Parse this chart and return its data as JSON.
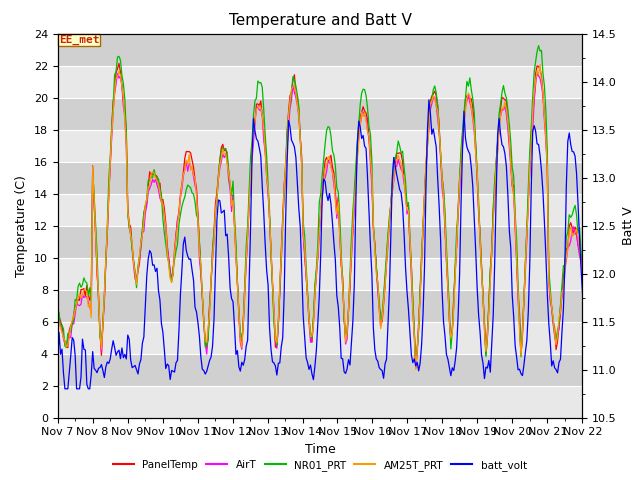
{
  "title": "Temperature and Batt V",
  "xlabel": "Time",
  "ylabel_left": "Temperature (C)",
  "ylabel_right": "Batt V",
  "ylim_left": [
    0,
    24
  ],
  "ylim_right": [
    10.5,
    14.5
  ],
  "x_tick_labels": [
    "Nov 7",
    "Nov 8",
    "Nov 9",
    "Nov 10",
    "Nov 11",
    "Nov 12",
    "Nov 13",
    "Nov 14",
    "Nov 15",
    "Nov 16",
    "Nov 17",
    "Nov 18",
    "Nov 19",
    "Nov 20",
    "Nov 21",
    "Nov 22"
  ],
  "legend_label": "EE_met",
  "series_labels": [
    "PanelTemp",
    "AirT",
    "NR01_PRT",
    "AM25T_PRT",
    "batt_volt"
  ],
  "series_colors": [
    "#ff0000",
    "#ff00ff",
    "#00bb00",
    "#ff9900",
    "#0000ff"
  ],
  "plot_bg_color": "#d8d8d8",
  "fig_bg_color": "#ffffff",
  "title_fontsize": 11,
  "axis_fontsize": 9,
  "tick_fontsize": 8,
  "days": 15
}
